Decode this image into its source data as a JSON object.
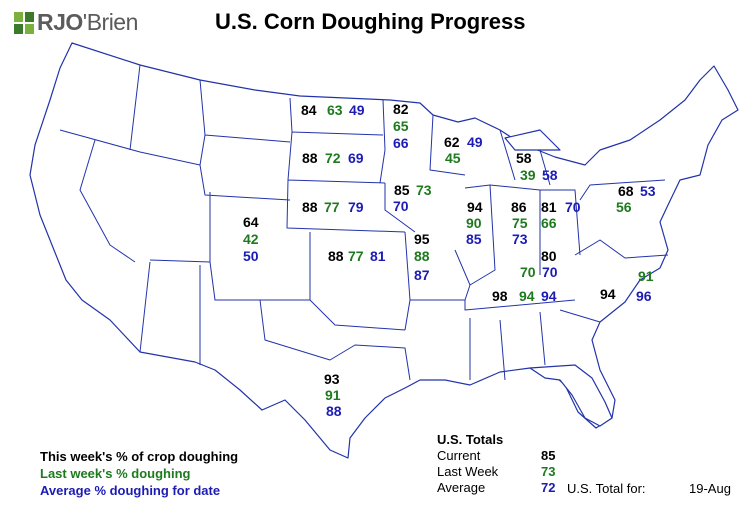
{
  "logo": {
    "text_rjo": "RJO",
    "text_rest": "'Brien",
    "colors": [
      "#7ab03c",
      "#3a7a2a"
    ]
  },
  "title": "U.S. Corn Doughing Progress",
  "colors": {
    "current": "#000000",
    "last_week": "#1e7a1e",
    "average": "#1c1cb5",
    "state_fill": "#ffffff",
    "state_stroke": "#2233aa"
  },
  "states": {
    "north_dakota": {
      "current": "84",
      "last_week": "63",
      "average": "49"
    },
    "minnesota": {
      "current": "82",
      "last_week": "65",
      "average": "66"
    },
    "south_dakota": {
      "current": "88",
      "last_week": "72",
      "average": "69"
    },
    "wisconsin": {
      "current": "62",
      "last_week": "45",
      "average": "49"
    },
    "michigan": {
      "current": "58",
      "last_week": "39",
      "average": "58"
    },
    "iowa": {
      "current": "85",
      "last_week": "73",
      "average": "70"
    },
    "nebraska": {
      "current": "88",
      "last_week": "77",
      "average": "79"
    },
    "pennsylvania": {
      "current": "68",
      "last_week": "56",
      "average": "53"
    },
    "illinois": {
      "current": "94",
      "last_week": "90",
      "average": "85"
    },
    "indiana": {
      "current": "86",
      "last_week": "75",
      "average": "73"
    },
    "ohio": {
      "current": "81",
      "last_week": "66",
      "average": "70"
    },
    "colorado": {
      "current": "64",
      "last_week": "42",
      "average": "50"
    },
    "kansas": {
      "current": "88",
      "last_week": "77",
      "average": "81"
    },
    "missouri": {
      "current": "95",
      "last_week": "88",
      "average": "87"
    },
    "kentucky": {
      "current": "80",
      "last_week": "70",
      "average": "70"
    },
    "north_carolina": {
      "current": "94",
      "last_week": "91",
      "average": "96"
    },
    "tennessee": {
      "current": "98",
      "last_week": "94",
      "average": "94"
    },
    "texas": {
      "current": "93",
      "last_week": "91",
      "average": "88"
    }
  },
  "legend": {
    "current": "This week's % of crop doughing",
    "last_week": "Last week's % doughing",
    "average": "Average % doughing for date"
  },
  "totals": {
    "heading": "U.S. Totals",
    "current_label": "Current",
    "current_value": "85",
    "last_week_label": "Last Week",
    "last_week_value": "73",
    "average_label": "Average",
    "average_value": "72",
    "date_label": "U.S. Total for:",
    "date_value": "19-Aug"
  }
}
